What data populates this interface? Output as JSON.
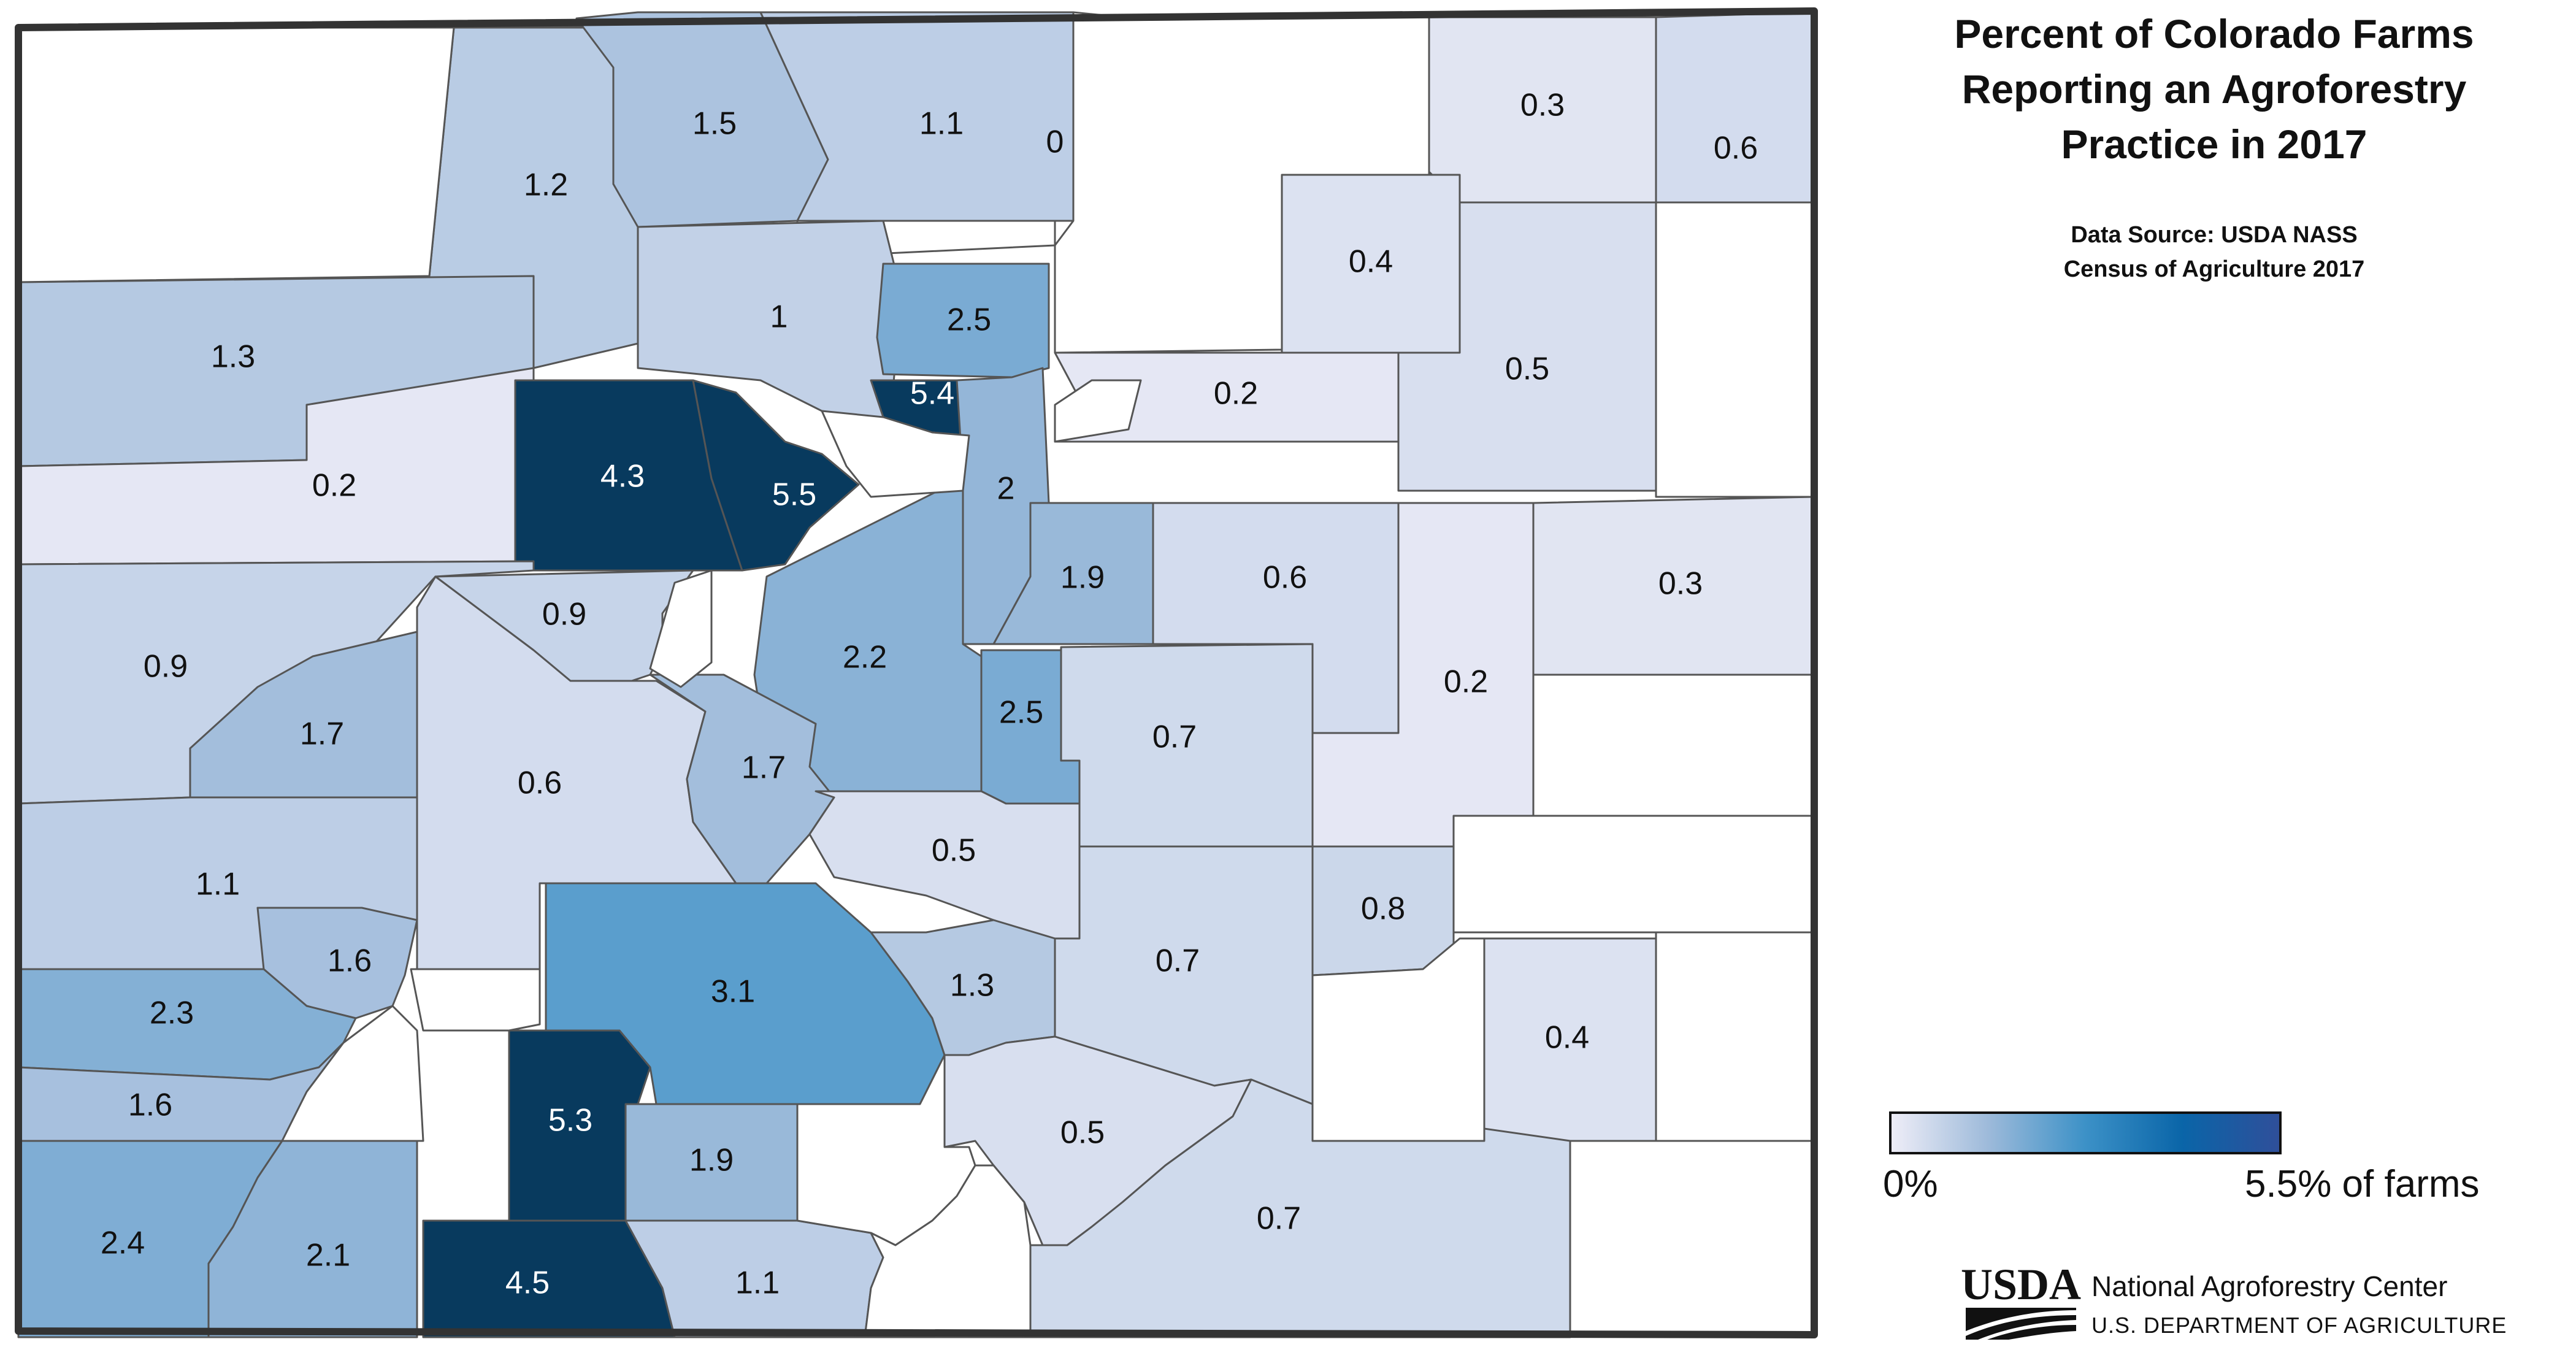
{
  "title_lines": [
    "Percent of Colorado Farms",
    "Reporting an Agroforestry",
    "Practice in 2017"
  ],
  "source_lines": [
    "Data Source: USDA NASS",
    "Census of Agriculture 2017"
  ],
  "legend": {
    "min_label": "0%",
    "max_label": "5.5% of farms",
    "scale_min": 0,
    "scale_max": 5.5,
    "colors": [
      "#eeedf7",
      "#9dbada",
      "#3c91c7",
      "#0a65a8",
      "#2f4f9a"
    ]
  },
  "logo": {
    "wordmark": "USDA",
    "org_name": "National Agroforestry Center",
    "dept": "U.S. DEPARTMENT OF AGRICULTURE"
  },
  "map_colors": {
    "zero": "#ffffff",
    "border": "#333333",
    "county_line": "#555555"
  },
  "counties": [
    {
      "label": "0"
    },
    {
      "label": "1.2"
    },
    {
      "label": "1.5"
    },
    {
      "label": "1.1"
    },
    {
      "label": "0.3"
    },
    {
      "label": "0.6"
    },
    {
      "label": "1.3"
    },
    {
      "label": "1"
    },
    {
      "label": "2.5"
    },
    {
      "label": "0.4"
    },
    {
      "label": "0.5"
    },
    {
      "label": "0.2"
    },
    {
      "label": "4.3"
    },
    {
      "label": "5.5"
    },
    {
      "label": "5.4"
    },
    {
      "label": "0.2"
    },
    {
      "label": "2"
    },
    {
      "label": "0.9"
    },
    {
      "label": "0.9"
    },
    {
      "label": "1.9"
    },
    {
      "label": "0.6"
    },
    {
      "label": "0.3"
    },
    {
      "label": "1.7"
    },
    {
      "label": "2.2"
    },
    {
      "label": "2.5"
    },
    {
      "label": "0.2"
    },
    {
      "label": "0.6"
    },
    {
      "label": "1.7"
    },
    {
      "label": "0.7"
    },
    {
      "label": "0.5"
    },
    {
      "label": "1.1"
    },
    {
      "label": "1.6"
    },
    {
      "label": "3.1"
    },
    {
      "label": "0.8"
    },
    {
      "label": "2.3"
    },
    {
      "label": "1.3"
    },
    {
      "label": "0.7"
    },
    {
      "label": "1.6"
    },
    {
      "label": "0.4"
    },
    {
      "label": "5.3"
    },
    {
      "label": "0.5"
    },
    {
      "label": "1.9"
    },
    {
      "label": "2.4"
    },
    {
      "label": "2.1"
    },
    {
      "label": "0.7"
    },
    {
      "label": "4.5"
    },
    {
      "label": "1.1"
    },
    {
      "label": ""
    },
    {
      "label": ""
    },
    {
      "label": ""
    },
    {
      "label": ""
    },
    {
      "label": ""
    },
    {
      "label": ""
    },
    {
      "label": ""
    },
    {
      "label": ""
    },
    {
      "label": ""
    },
    {
      "label": ""
    },
    {
      "label": ""
    },
    {
      "label": ""
    },
    {
      "label": ""
    },
    {
      "label": ""
    },
    {
      "label": ""
    }
  ]
}
